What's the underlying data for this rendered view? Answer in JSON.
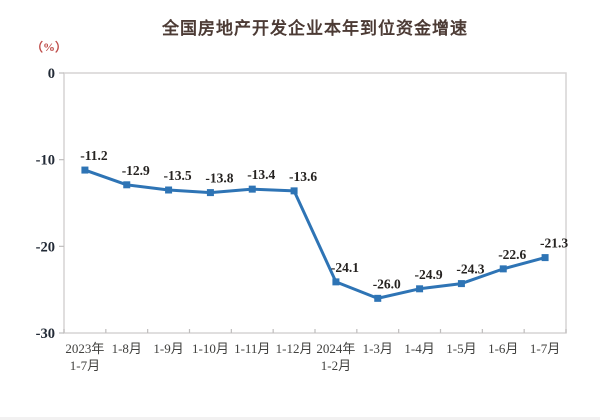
{
  "page": {
    "background": "#ffffff"
  },
  "chart_data": {
    "type": "line",
    "title": "全国房地产开发企业本年到位资金增速",
    "unit_label": "（%）",
    "categories": [
      "2023年\n1-7月",
      "1-8月",
      "1-9月",
      "1-10月",
      "1-11月",
      "1-12月",
      "2024年\n1-2月",
      "1-3月",
      "1-4月",
      "1-5月",
      "1-6月",
      "1-7月"
    ],
    "values": [
      -11.2,
      -12.9,
      -13.5,
      -13.8,
      -13.4,
      -13.6,
      -24.1,
      -26.0,
      -24.9,
      -24.3,
      -22.6,
      -21.3
    ],
    "data_labels": [
      "-11.2",
      "-12.9",
      "-13.5",
      "-13.8",
      "-13.4",
      "-13.6",
      "-24.1",
      "-26.0",
      "-24.9",
      "-24.3",
      "-22.6",
      "-21.3"
    ],
    "xlabel": "",
    "ylabel": "（%）",
    "ylim": [
      -30,
      0
    ],
    "ytick_values": [
      0,
      -10,
      -20,
      -30
    ],
    "ytick_labels": [
      "0",
      "-10",
      "-20",
      "-30"
    ],
    "grid": false,
    "legend": "none",
    "colors": {
      "line": "#2E74B5",
      "marker": "#2E74B5",
      "plot_border": "#D6D4D4",
      "tick": "#BFBDBD",
      "title_text": "#4C3B35",
      "unit_text": "#BE4B48",
      "axis_label_text": "#222A36",
      "category_label_text": "#40403E",
      "data_label_text": "#262321"
    }
  }
}
